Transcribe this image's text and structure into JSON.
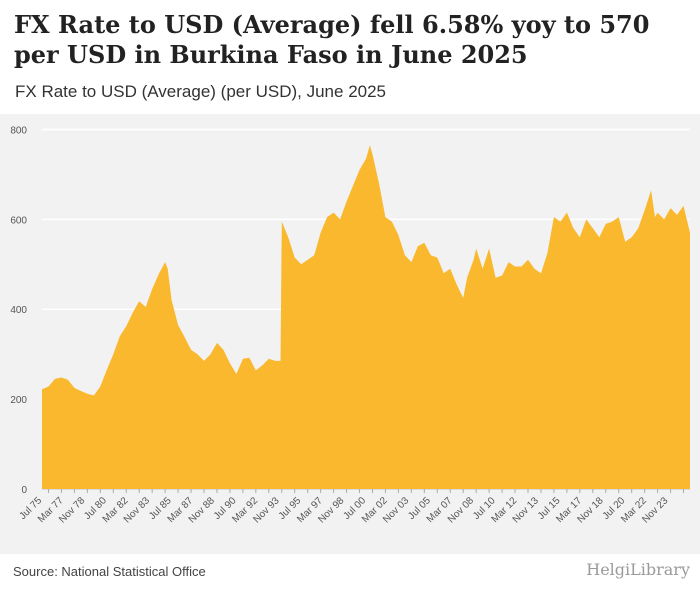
{
  "title": "FX Rate to USD (Average) fell 6.58% yoy to 570 per USD in Burkina Faso in June 2025",
  "subtitle": "FX Rate to USD (Average) (per USD), June 2025",
  "source": "Source: National Statistical Office",
  "logo_text": "HelgiLibrary",
  "colors": {
    "area": "#F9B82E",
    "plot_bg": "#F2F2F2",
    "grid": "#FFFFFF",
    "text": "#555555"
  },
  "chart_data": {
    "type": "area",
    "title": "FX Rate to USD (Average) (per USD), June 2025",
    "xlabel": "",
    "ylabel": "",
    "ylim": [
      0,
      830
    ],
    "y_ticks": [
      0,
      200,
      400,
      600,
      800
    ],
    "x_tick_labels": [
      "Jul 75",
      "Mar 77",
      "Nov 78",
      "Jul 80",
      "Mar 82",
      "Nov 83",
      "Jul 85",
      "Mar 87",
      "Nov 88",
      "Jul 90",
      "Mar 92",
      "Nov 93",
      "Jul 95",
      "Mar 97",
      "Nov 98",
      "Jul 00",
      "Mar 02",
      "Nov 03",
      "Jul 05",
      "Mar 07",
      "Nov 08",
      "Jul 10",
      "Mar 12",
      "Nov 13",
      "Jul 15",
      "Mar 17",
      "Nov 18",
      "Jul 20",
      "Mar 22",
      "Nov 23"
    ],
    "x_tick_years": [
      1975.5,
      1977.17,
      1978.83,
      1980.5,
      1982.17,
      1983.83,
      1985.5,
      1987.17,
      1988.83,
      1990.5,
      1992.17,
      1993.83,
      1995.5,
      1997.17,
      1998.83,
      2000.5,
      2002.17,
      2003.83,
      2005.5,
      2007.17,
      2008.83,
      2010.5,
      2012.17,
      2013.83,
      2015.5,
      2017.17,
      2018.83,
      2020.5,
      2022.17,
      2023.83
    ],
    "x_range": [
      1975.5,
      2025.5
    ],
    "series": [
      {
        "name": "FX Rate to USD (Average)",
        "x": [
          1975.5,
          1976.0,
          1976.5,
          1977.0,
          1977.5,
          1978.0,
          1978.5,
          1979.0,
          1979.5,
          1980.0,
          1980.5,
          1981.0,
          1981.5,
          1982.0,
          1982.5,
          1983.0,
          1983.5,
          1984.0,
          1984.5,
          1985.0,
          1985.2,
          1985.5,
          1986.0,
          1986.5,
          1987.0,
          1987.5,
          1988.0,
          1988.5,
          1989.0,
          1989.5,
          1990.0,
          1990.5,
          1991.0,
          1991.5,
          1992.0,
          1992.5,
          1993.0,
          1993.5,
          1993.9,
          1994.0,
          1994.5,
          1995.0,
          1995.5,
          1996.0,
          1996.5,
          1997.0,
          1997.5,
          1998.0,
          1998.5,
          1999.0,
          1999.5,
          2000.0,
          2000.5,
          2000.8,
          2001.0,
          2001.5,
          2002.0,
          2002.5,
          2003.0,
          2003.5,
          2004.0,
          2004.5,
          2005.0,
          2005.5,
          2006.0,
          2006.5,
          2007.0,
          2007.5,
          2008.0,
          2008.3,
          2008.8,
          2009.0,
          2009.5,
          2010.0,
          2010.5,
          2011.0,
          2011.5,
          2012.0,
          2012.5,
          2013.0,
          2013.5,
          2014.0,
          2014.5,
          2015.0,
          2015.5,
          2016.0,
          2016.5,
          2017.0,
          2017.5,
          2018.0,
          2018.5,
          2019.0,
          2019.5,
          2020.0,
          2020.5,
          2021.0,
          2021.5,
          2022.0,
          2022.5,
          2022.8,
          2023.0,
          2023.5,
          2024.0,
          2024.5,
          2025.0,
          2025.5
        ],
        "values": [
          222,
          228,
          245,
          248,
          243,
          225,
          218,
          212,
          208,
          228,
          265,
          300,
          340,
          362,
          392,
          418,
          405,
          445,
          478,
          505,
          490,
          420,
          365,
          338,
          310,
          300,
          285,
          300,
          325,
          310,
          280,
          256,
          290,
          292,
          264,
          275,
          290,
          285,
          285,
          595,
          560,
          515,
          500,
          510,
          520,
          570,
          605,
          615,
          600,
          640,
          675,
          710,
          735,
          765,
          745,
          680,
          605,
          595,
          565,
          520,
          505,
          540,
          548,
          520,
          515,
          480,
          490,
          455,
          425,
          470,
          510,
          535,
          490,
          535,
          470,
          475,
          505,
          495,
          495,
          510,
          490,
          480,
          525,
          605,
          595,
          615,
          580,
          560,
          600,
          580,
          560,
          590,
          595,
          605,
          550,
          560,
          580,
          620,
          665,
          605,
          615,
          600,
          625,
          610,
          630,
          570
        ]
      }
    ]
  }
}
